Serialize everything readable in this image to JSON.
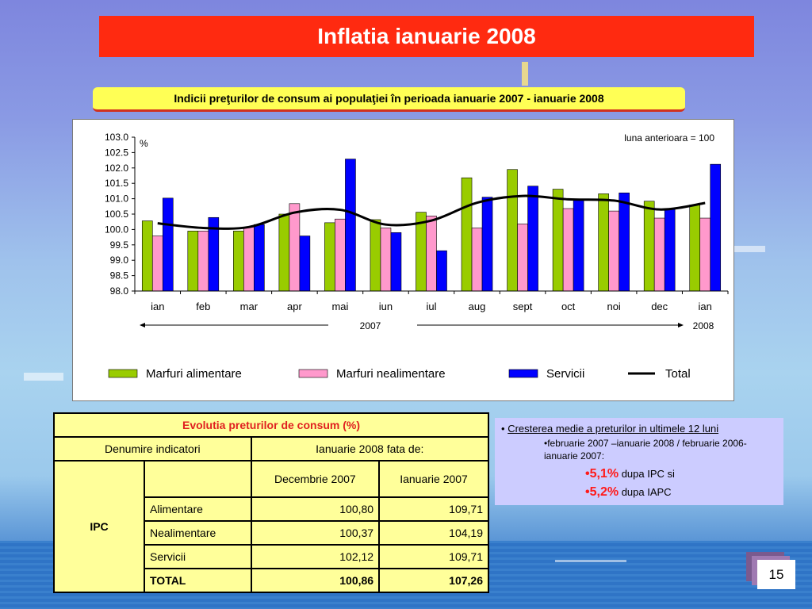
{
  "title": "Inflatia ianuarie 2008",
  "chart_header": "Indicii preţurilor de consum ai populaţiei în perioada ianuarie 2007 - ianuarie 2008",
  "chart_data": {
    "type": "bar",
    "unit_label": "%",
    "base_note": "luna anterioara = 100",
    "categories": [
      "ian",
      "feb",
      "mar",
      "apr",
      "mai",
      "iun",
      "iul",
      "aug",
      "sept",
      "oct",
      "noi",
      "dec",
      "ian"
    ],
    "year_labels": [
      "2007",
      "2008"
    ],
    "ylim": [
      98.0,
      103.0
    ],
    "y_ticks": [
      "98.0",
      "98.5",
      "99.0",
      "99.5",
      "100.0",
      "100.5",
      "101.0",
      "101.5",
      "102.0",
      "102.5",
      "103.0"
    ],
    "series": [
      {
        "name": "Marfuri alimentare",
        "type": "bar",
        "color": "#99cc00",
        "values": [
          100.28,
          99.95,
          99.95,
          100.5,
          100.22,
          100.32,
          100.56,
          101.68,
          101.95,
          101.31,
          101.16,
          100.92,
          100.8
        ]
      },
      {
        "name": "Marfuri nealimentare",
        "type": "bar",
        "color": "#ff99cc",
        "values": [
          99.79,
          99.95,
          100.08,
          100.84,
          100.34,
          100.05,
          100.44,
          100.05,
          100.18,
          100.68,
          100.6,
          100.37,
          100.37
        ]
      },
      {
        "name": "Servicii",
        "type": "bar",
        "color": "#0000ff",
        "values": [
          101.02,
          100.39,
          100.16,
          99.79,
          102.29,
          99.9,
          99.31,
          101.05,
          101.41,
          100.98,
          101.19,
          100.66,
          102.12
        ]
      },
      {
        "name": "Total",
        "type": "line",
        "color": "#000000",
        "values": [
          100.2,
          100.05,
          100.08,
          100.55,
          100.64,
          100.16,
          100.29,
          100.87,
          101.09,
          100.98,
          100.94,
          100.65,
          100.86
        ]
      }
    ]
  },
  "table": {
    "title": "Evolutia preturilor de consum (%)",
    "col_indicator": "Denumire indicatori",
    "col_group": "Ianuarie 2008 fata de:",
    "sub_cols": [
      "Decembrie 2007",
      "Ianuarie 2007"
    ],
    "group_label": "IPC",
    "rows": [
      {
        "label": "Alimentare",
        "dec": "100,80",
        "ian": "109,71"
      },
      {
        "label": "Nealimentare",
        "dec": "100,37",
        "ian": "104,19"
      },
      {
        "label": "Servicii",
        "dec": "102,12",
        "ian": "109,71"
      },
      {
        "label": "TOTAL",
        "dec": "100,86",
        "ian": "107,26"
      }
    ]
  },
  "info": {
    "line1_bullet": "•",
    "line1": "Cresterea medie a preturilor in ultimele 12 luni",
    "line2": "•februarie 2007 –ianuarie 2008 / februarie 2006-ianuarie 2007:",
    "val1": "•5,1%",
    "val1_suffix": " dupa IPC si",
    "val2": "•5,2%",
    "val2_suffix": " dupa IAPC"
  },
  "page_number": "15"
}
